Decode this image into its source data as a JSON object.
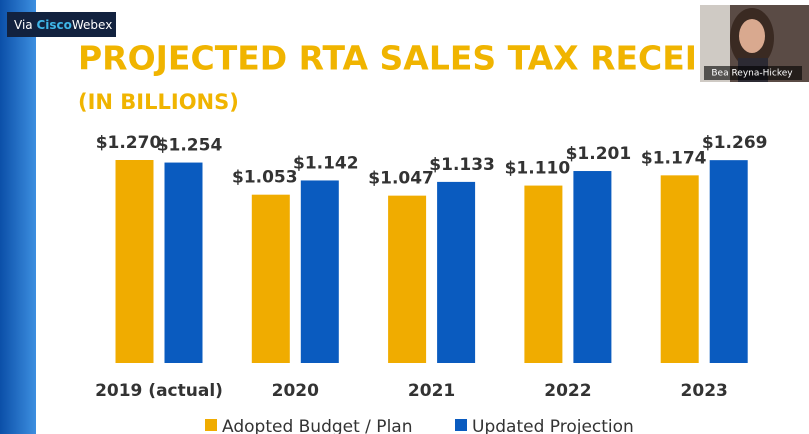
{
  "overlay": {
    "badge_prefix": "Via",
    "badge_brand": "Cisco",
    "badge_product": "Webex",
    "participant_name": "Bea Reyna-Hickey"
  },
  "chart_data": {
    "type": "bar",
    "title": "PROJECTED RTA SALES TAX RECEIPTS",
    "subtitle": "(IN BILLIONS)",
    "categories": [
      "2019 (actual)",
      "2020",
      "2021",
      "2022",
      "2023"
    ],
    "series": [
      {
        "name": "Adopted Budget / Plan",
        "color": "#f0ac00",
        "values": [
          1.27,
          1.053,
          1.047,
          1.11,
          1.174
        ],
        "value_labels": [
          "$1.270",
          "$1.053",
          "$1.047",
          "$1.110",
          "$1.174"
        ]
      },
      {
        "name": "Updated Projection",
        "color": "#0a5bbf",
        "values": [
          1.254,
          1.142,
          1.133,
          1.201,
          1.269
        ],
        "value_labels": [
          "$1.254",
          "$1.142",
          "$1.133",
          "$1.201",
          "$1.269"
        ]
      }
    ]
  }
}
